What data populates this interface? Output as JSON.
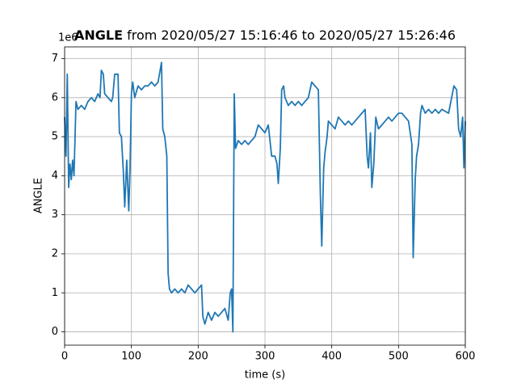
{
  "chart_data": {
    "type": "line",
    "title": [
      "ANGLE",
      "from 2020/05/27 15:16:46 to 2020/05/27 15:26:46"
    ],
    "offset_text": "1e6",
    "x_label": "time (s)",
    "y_label": "ANGLE",
    "xlim": [
      0,
      600
    ],
    "xticks": [
      0,
      100,
      200,
      300,
      400,
      500,
      600
    ],
    "ylim": [
      -0.34,
      7.3
    ],
    "yticks": [
      0,
      1,
      2,
      3,
      4,
      5,
      6,
      7
    ],
    "grid": true,
    "series": [
      {
        "color": "#1f77b4",
        "x": [
          0,
          2,
          4,
          6,
          8,
          10,
          12,
          14,
          17,
          20,
          25,
          30,
          35,
          40,
          45,
          50,
          53,
          55,
          58,
          60,
          65,
          70,
          72,
          75,
          80,
          82,
          85,
          88,
          90,
          93,
          96,
          98,
          100,
          102,
          105,
          110,
          115,
          120,
          125,
          130,
          135,
          140,
          145,
          147,
          150,
          153,
          155,
          157,
          160,
          165,
          170,
          175,
          180,
          185,
          190,
          195,
          200,
          205,
          207,
          210,
          215,
          220,
          225,
          230,
          235,
          240,
          245,
          248,
          250,
          252,
          254,
          256,
          260,
          265,
          270,
          275,
          280,
          285,
          290,
          295,
          300,
          305,
          310,
          315,
          318,
          320,
          323,
          325,
          328,
          330,
          335,
          340,
          345,
          350,
          355,
          360,
          365,
          370,
          375,
          380,
          383,
          385,
          388,
          390,
          393,
          395,
          400,
          405,
          410,
          415,
          420,
          425,
          430,
          435,
          440,
          445,
          450,
          453,
          455,
          458,
          460,
          463,
          466,
          470,
          475,
          480,
          485,
          490,
          495,
          500,
          505,
          510,
          515,
          520,
          522,
          525,
          527,
          530,
          533,
          535,
          540,
          545,
          550,
          555,
          560,
          565,
          575,
          583,
          587,
          590,
          593,
          596,
          598,
          600
        ],
        "values": [
          5.5,
          4.5,
          6.6,
          3.7,
          4.3,
          3.9,
          4.4,
          4.0,
          5.9,
          5.7,
          5.8,
          5.7,
          5.9,
          6.0,
          5.9,
          6.1,
          6.0,
          6.7,
          6.6,
          6.1,
          6.0,
          5.9,
          6.0,
          6.6,
          6.6,
          5.1,
          5.0,
          4.1,
          3.2,
          4.4,
          3.1,
          4.2,
          6.1,
          6.4,
          6.0,
          6.3,
          6.2,
          6.3,
          6.3,
          6.4,
          6.3,
          6.4,
          6.9,
          5.2,
          5.0,
          4.5,
          1.5,
          1.1,
          1.0,
          1.1,
          1.0,
          1.1,
          1.0,
          1.2,
          1.1,
          1.0,
          1.1,
          1.2,
          0.4,
          0.2,
          0.5,
          0.3,
          0.5,
          0.4,
          0.5,
          0.6,
          0.3,
          1.0,
          1.1,
          0.0,
          6.1,
          4.7,
          4.9,
          4.8,
          4.9,
          4.8,
          4.9,
          5.0,
          5.3,
          5.2,
          5.1,
          5.3,
          4.5,
          4.5,
          4.3,
          3.8,
          4.7,
          6.2,
          6.3,
          6.0,
          5.8,
          5.9,
          5.8,
          5.9,
          5.8,
          5.9,
          6.0,
          6.4,
          6.3,
          6.2,
          3.5,
          2.2,
          4.2,
          4.6,
          5.0,
          5.4,
          5.3,
          5.2,
          5.5,
          5.4,
          5.3,
          5.4,
          5.3,
          5.4,
          5.5,
          5.6,
          5.7,
          4.5,
          4.2,
          5.1,
          3.7,
          4.3,
          5.5,
          5.2,
          5.3,
          5.4,
          5.5,
          5.4,
          5.5,
          5.6,
          5.6,
          5.5,
          5.4,
          4.8,
          1.9,
          3.9,
          4.5,
          4.8,
          5.6,
          5.8,
          5.6,
          5.7,
          5.6,
          5.7,
          5.6,
          5.7,
          5.6,
          6.3,
          6.2,
          5.2,
          5.0,
          5.5,
          4.2,
          5.4
        ]
      }
    ]
  }
}
